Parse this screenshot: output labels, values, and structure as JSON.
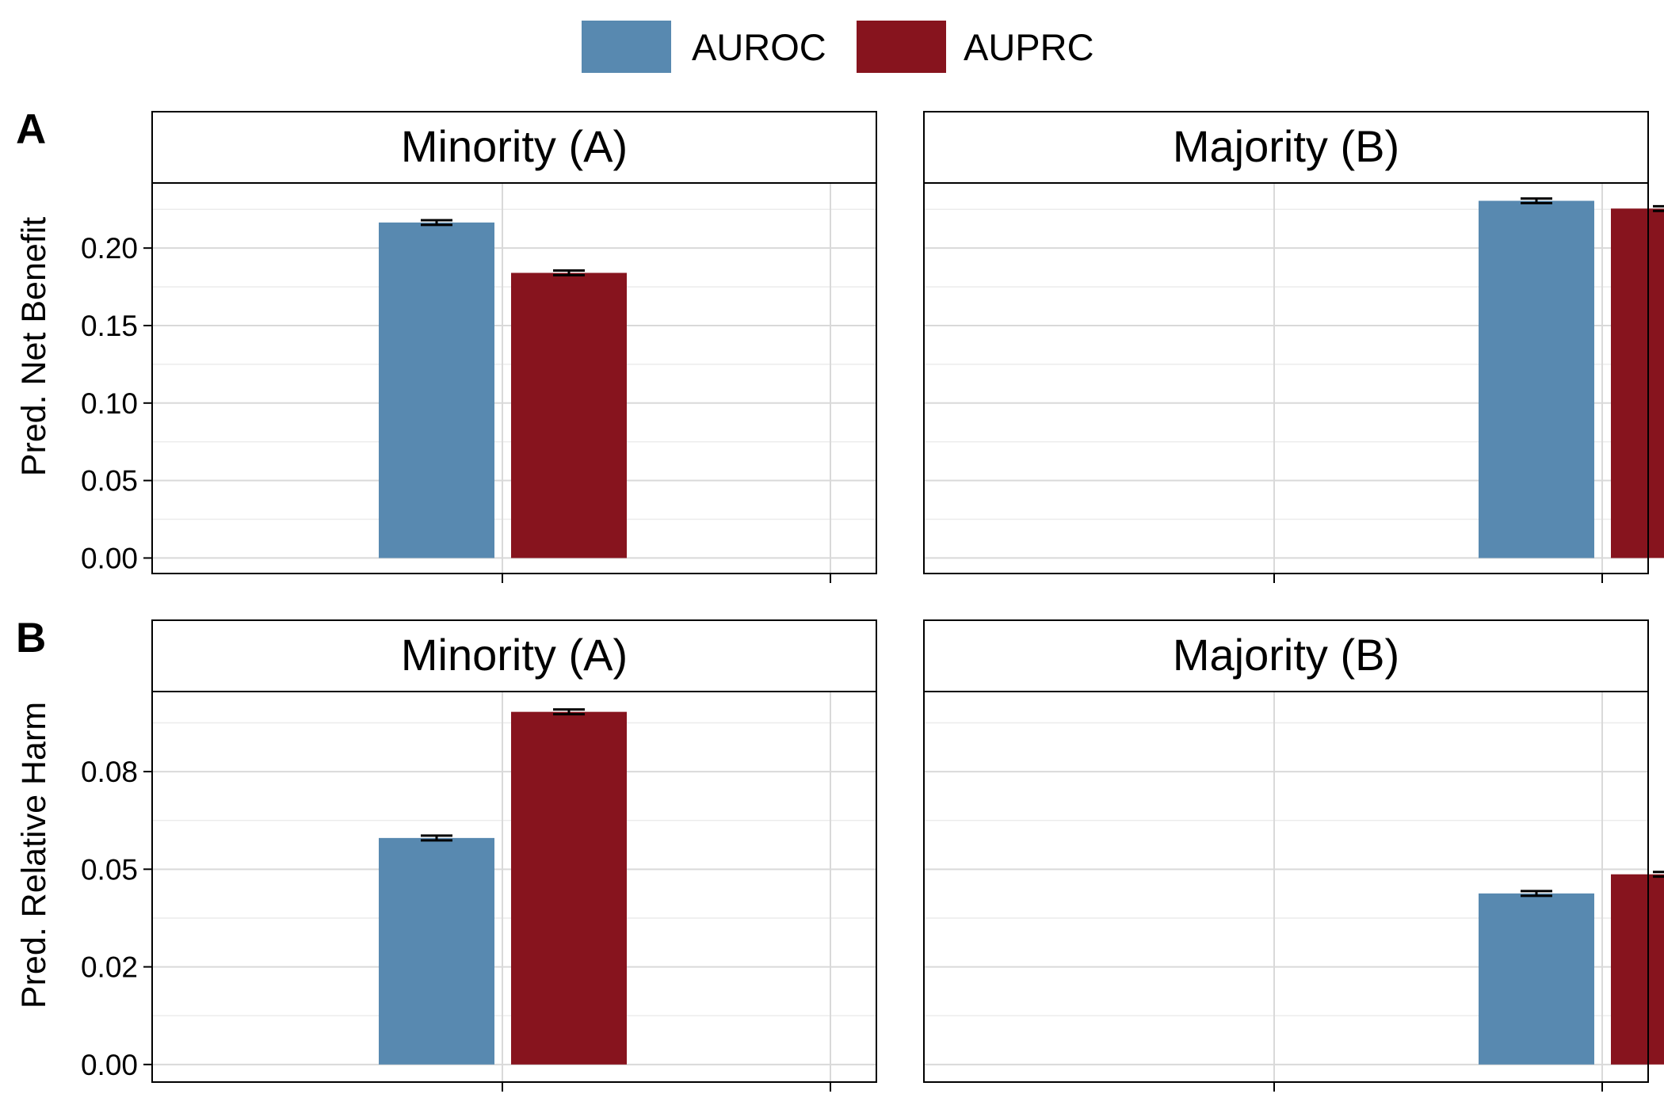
{
  "chart_data": {
    "type": "bar",
    "legend": {
      "position": "top",
      "items": [
        {
          "label": "AUROC",
          "color": "#5889b0"
        },
        {
          "label": "AUPRC",
          "color": "#87141e"
        }
      ]
    },
    "grid": true,
    "rows": [
      {
        "letter": "A",
        "ylabel": "Pred. Net Benefit",
        "ylim": [
          -0.01,
          0.242
        ],
        "ticks": [
          0.0,
          0.05,
          0.1,
          0.15,
          0.2
        ],
        "tick_labels": [
          "0.00",
          "0.05",
          "0.10",
          "0.15",
          "0.20"
        ],
        "panels": [
          {
            "strip": "Minority (A)",
            "position": "left",
            "series": [
              {
                "name": "AUROC",
                "value": 0.2165,
                "err": 0.0015
              },
              {
                "name": "AUPRC",
                "value": 0.184,
                "err": 0.0015
              }
            ]
          },
          {
            "strip": "Majority (B)",
            "position": "right",
            "series": [
              {
                "name": "AUROC",
                "value": 0.2305,
                "err": 0.0015
              },
              {
                "name": "AUPRC",
                "value": 0.2255,
                "err": 0.0015
              }
            ]
          }
        ]
      },
      {
        "letter": "B",
        "ylabel": "Pred. Relative Harm",
        "ylim": [
          -0.0045,
          0.0955
        ],
        "ticks": [
          0.0,
          0.025,
          0.05,
          0.075
        ],
        "tick_labels": [
          "0.00",
          "0.02",
          "0.05",
          "0.08"
        ],
        "panels": [
          {
            "strip": "Minority (A)",
            "position": "left",
            "series": [
              {
                "name": "AUROC",
                "value": 0.058,
                "err": 0.0006
              },
              {
                "name": "AUPRC",
                "value": 0.0903,
                "err": 0.0006
              }
            ]
          },
          {
            "strip": "Majority (B)",
            "position": "right",
            "series": [
              {
                "name": "AUROC",
                "value": 0.0438,
                "err": 0.0006
              },
              {
                "name": "AUPRC",
                "value": 0.0487,
                "err": 0.0006
              }
            ]
          }
        ]
      }
    ]
  }
}
